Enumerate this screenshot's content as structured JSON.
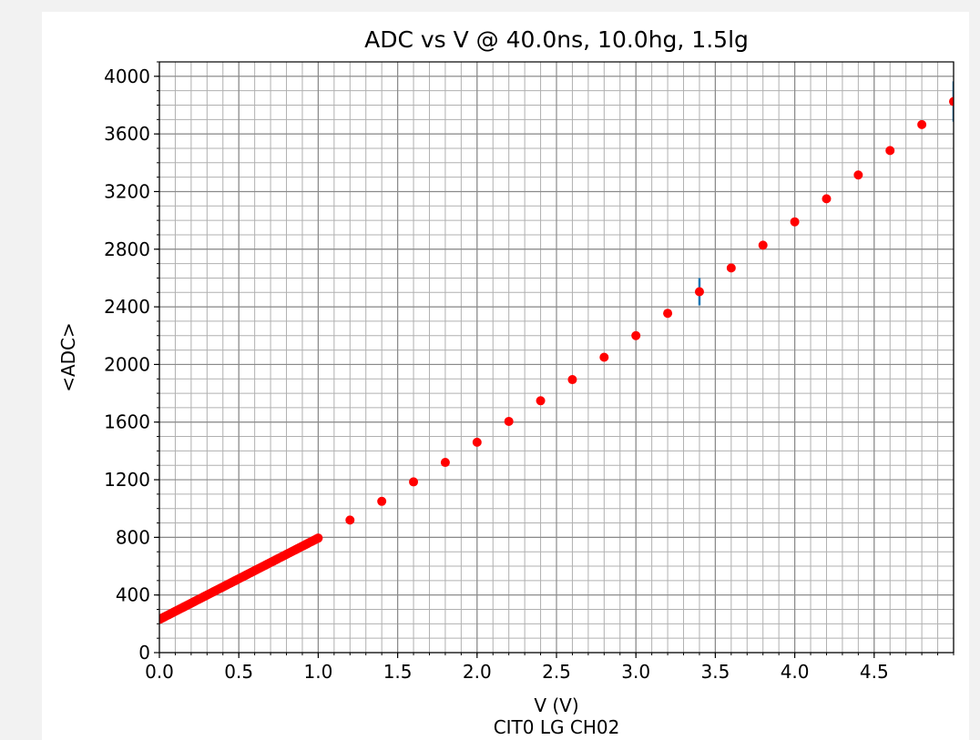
{
  "chart_data": {
    "type": "scatter",
    "title": "ADC vs V @ 40.0ns, 10.0hg, 1.5lg",
    "xlabel": "V (V)",
    "ylabel": "<ADC>",
    "caption": "CIT0 LG CH02",
    "xlim": [
      0.0,
      5.0
    ],
    "ylim": [
      0,
      4100
    ],
    "x_ticks": [
      "0.0",
      "0.5",
      "1.0",
      "1.5",
      "2.0",
      "2.5",
      "3.0",
      "3.5",
      "4.0",
      "4.5"
    ],
    "y_ticks": [
      "0",
      "400",
      "800",
      "1200",
      "1600",
      "2000",
      "2400",
      "2800",
      "3200",
      "3600",
      "4000"
    ],
    "grid": true,
    "minor_grid": true,
    "colors": {
      "points": "#ff0000",
      "errorbars": "#1f77b4",
      "grid": "#b0b0b0"
    },
    "dense_segment": {
      "x_start": 0.0,
      "x_end": 1.0,
      "step": 0.01,
      "y_start": 230,
      "y_end": 795
    },
    "series": [
      {
        "x": [
          1.2,
          1.4,
          1.6,
          1.8,
          2.0,
          2.2,
          2.4,
          2.6,
          2.8,
          3.0,
          3.2,
          3.4,
          3.6,
          3.8,
          4.0,
          4.2,
          4.4,
          4.6,
          4.8,
          5.0
        ],
        "y": [
          920,
          1050,
          1185,
          1320,
          1460,
          1605,
          1748,
          1895,
          2050,
          2200,
          2355,
          2505,
          2670,
          2828,
          2990,
          3150,
          3315,
          3485,
          3665,
          3825
        ],
        "yerr": [
          0,
          0,
          0,
          0,
          0,
          0,
          0,
          0,
          0,
          0,
          0,
          95,
          0,
          0,
          0,
          0,
          0,
          0,
          0,
          140
        ]
      }
    ]
  }
}
